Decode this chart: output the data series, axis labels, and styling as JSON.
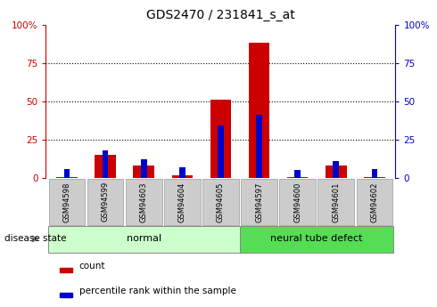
{
  "title": "GDS2470 / 231841_s_at",
  "samples": [
    "GSM94598",
    "GSM94599",
    "GSM94603",
    "GSM94604",
    "GSM94605",
    "GSM94597",
    "GSM94600",
    "GSM94601",
    "GSM94602"
  ],
  "red_values": [
    0.5,
    15,
    8,
    2,
    51,
    88,
    0.5,
    8,
    0.5
  ],
  "blue_values": [
    6,
    18,
    12,
    7,
    34,
    41,
    5,
    11,
    6
  ],
  "normal_label": "normal",
  "defect_label": "neural tube defect",
  "disease_state_label": "disease state",
  "legend_red": "count",
  "legend_blue": "percentile rank within the sample",
  "red_color": "#cc0000",
  "blue_color": "#0000cc",
  "normal_bg": "#ccffcc",
  "defect_bg": "#55dd55",
  "xticklabel_bg": "#cccccc",
  "ylim": [
    0,
    100
  ],
  "yticks": [
    0,
    25,
    50,
    75,
    100
  ],
  "red_bar_width": 0.55,
  "blue_bar_width": 0.15,
  "title_fontsize": 10,
  "tick_fontsize": 7.5,
  "label_fontsize": 8
}
